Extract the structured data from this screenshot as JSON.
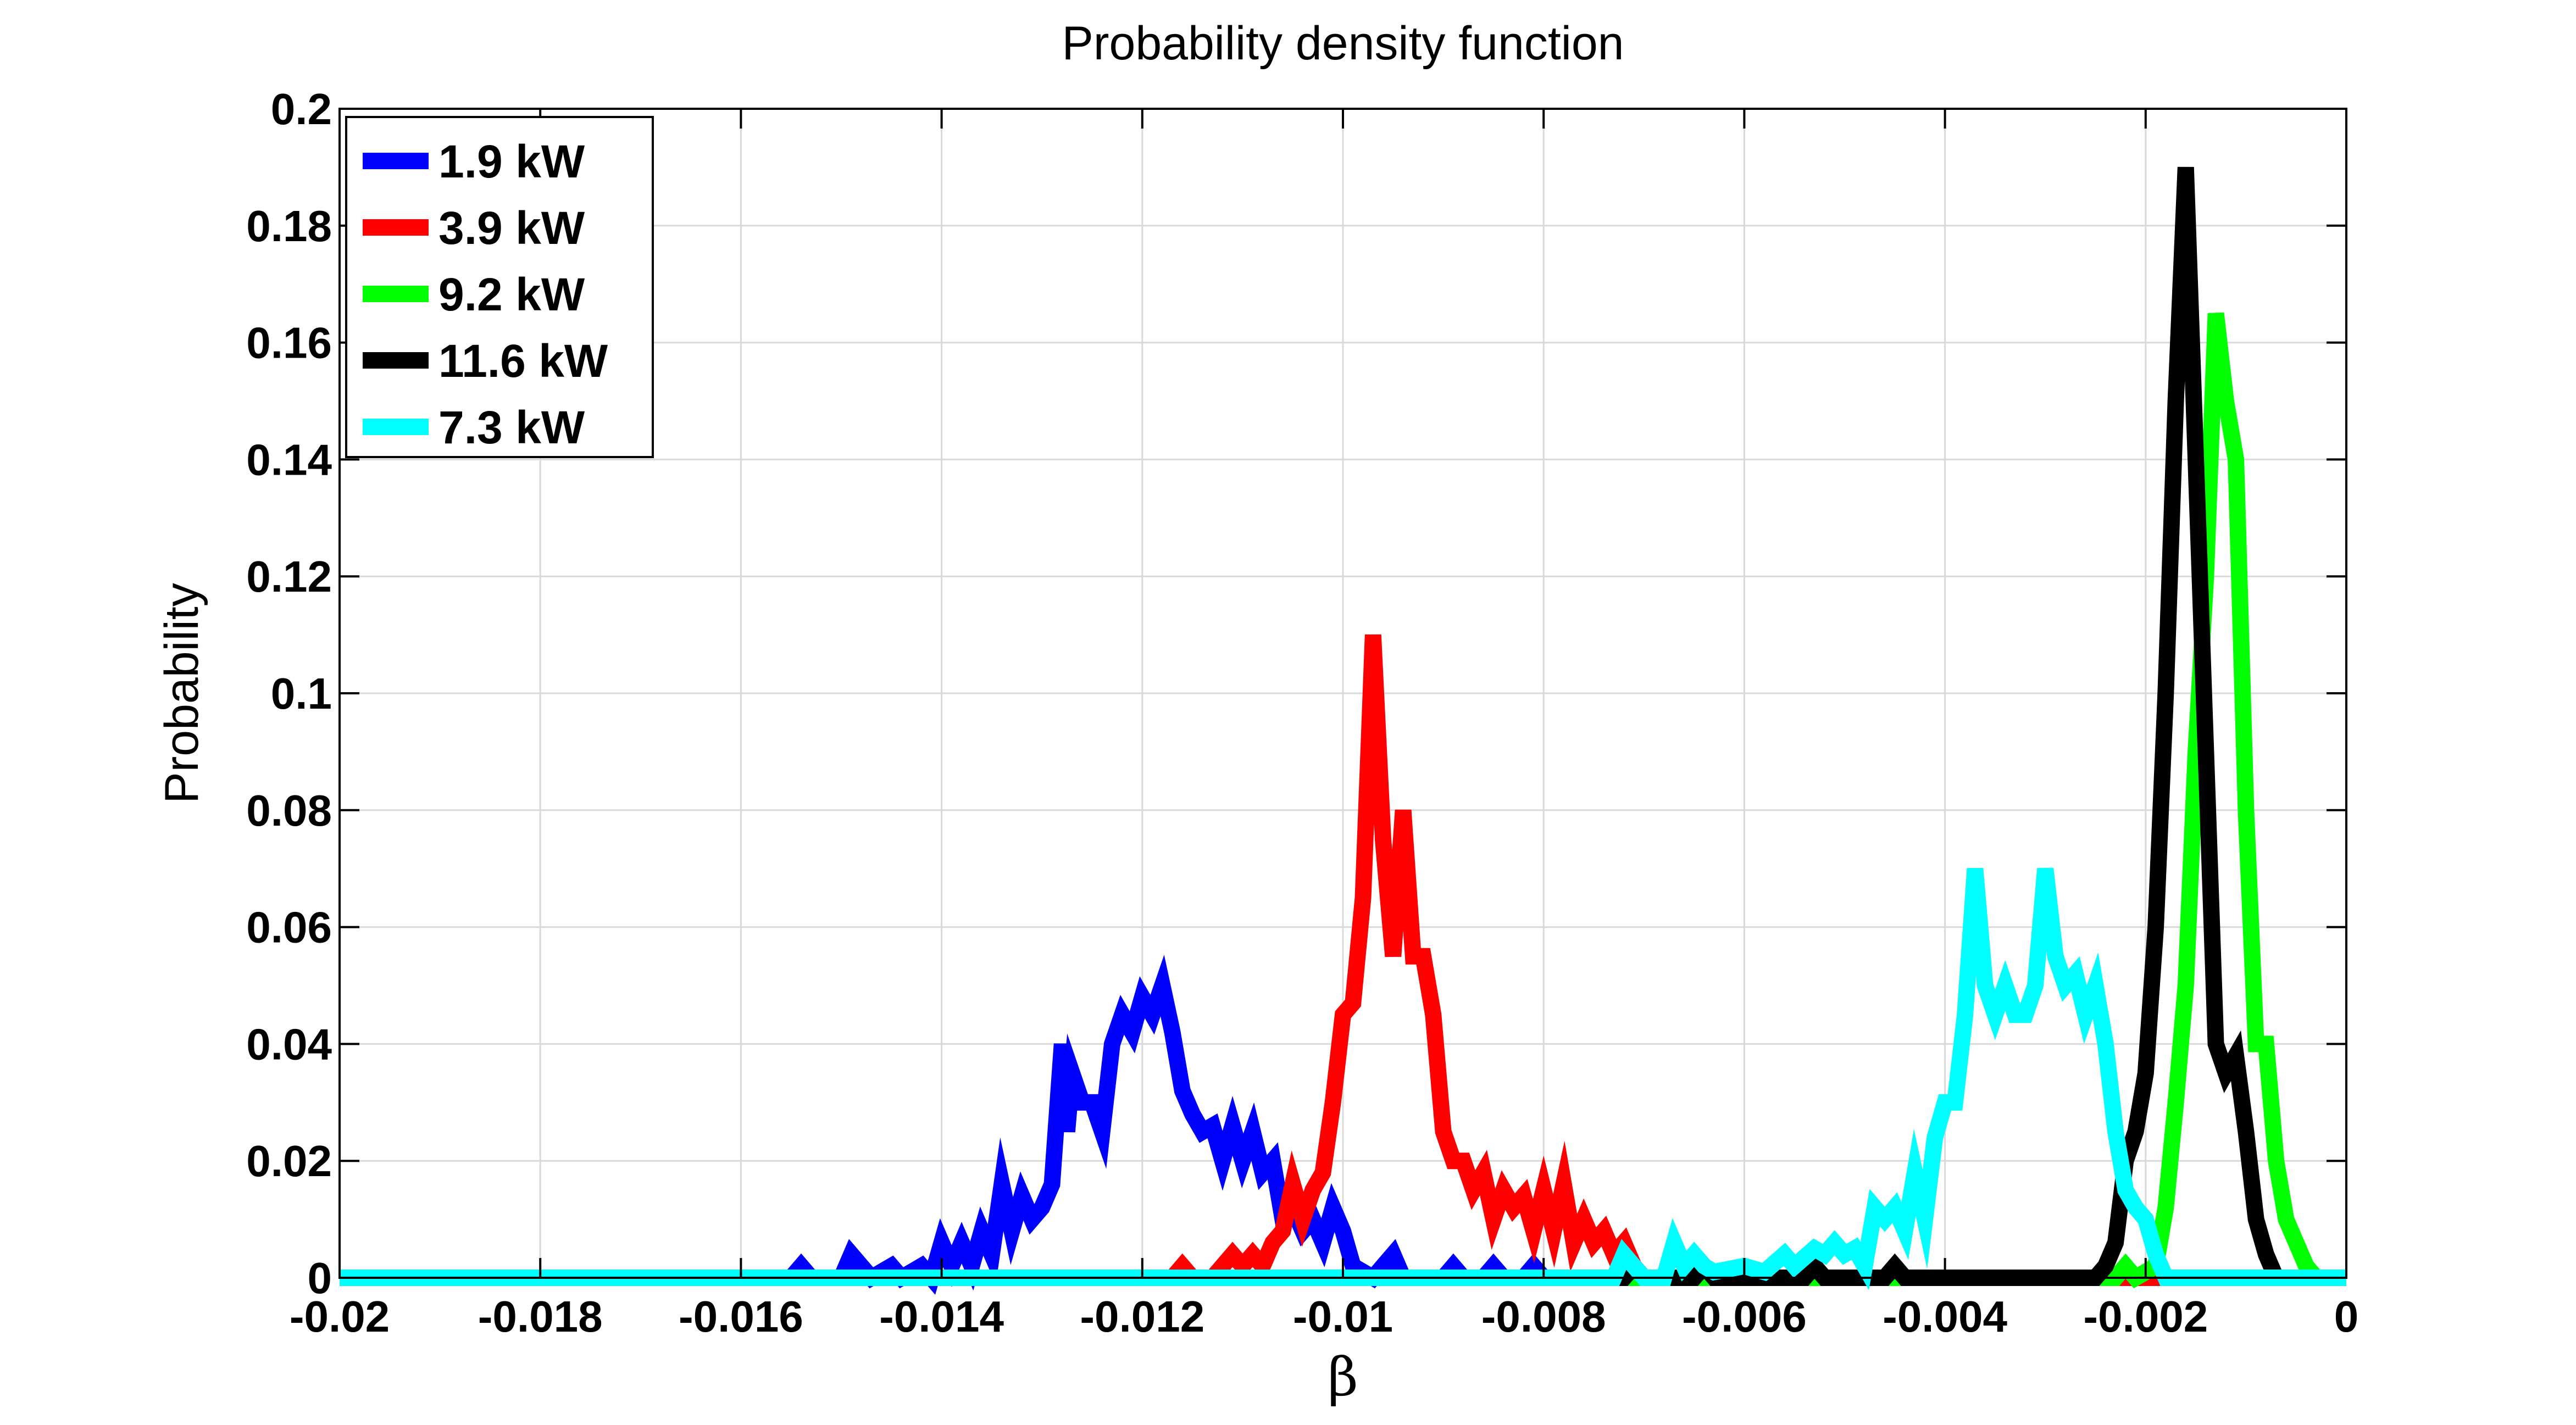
{
  "chart_data": {
    "type": "line",
    "title": "Probability density function",
    "xlabel": "β",
    "ylabel": "Probability",
    "xlim": [
      -0.02,
      0
    ],
    "ylim": [
      0,
      0.2
    ],
    "xticks": [
      -0.02,
      -0.018,
      -0.016,
      -0.014,
      -0.012,
      -0.01,
      -0.008,
      -0.006,
      -0.004,
      -0.002,
      0
    ],
    "xtick_labels": [
      "-0.02",
      "-0.018",
      "-0.016",
      "-0.014",
      "-0.012",
      "-0.01",
      "-0.008",
      "-0.006",
      "-0.004",
      "-0.002",
      "0"
    ],
    "yticks": [
      0,
      0.02,
      0.04,
      0.06,
      0.08,
      0.1,
      0.12,
      0.14,
      0.16,
      0.18,
      0.2
    ],
    "ytick_labels": [
      "0",
      "0.02",
      "0.04",
      "0.06",
      "0.08",
      "0.1",
      "0.12",
      "0.14",
      "0.16",
      "0.18",
      "0.2"
    ],
    "grid": true,
    "legend_position": "top-left",
    "series": [
      {
        "name": "1.9 kW",
        "color": "#0000ff",
        "points": [
          [
            -0.02,
            0
          ],
          [
            -0.0155,
            0
          ],
          [
            -0.0154,
            0.002
          ],
          [
            -0.0153,
            0
          ],
          [
            -0.015,
            0
          ],
          [
            -0.0149,
            0.004
          ],
          [
            -0.0148,
            0.002
          ],
          [
            -0.0147,
            0
          ],
          [
            -0.0145,
            0.002
          ],
          [
            -0.0144,
            0
          ],
          [
            -0.0142,
            0.002
          ],
          [
            -0.0141,
            0
          ],
          [
            -0.014,
            0.006
          ],
          [
            -0.0139,
            0.002
          ],
          [
            -0.0138,
            0.006
          ],
          [
            -0.0137,
            0.002
          ],
          [
            -0.0136,
            0.008
          ],
          [
            -0.0135,
            0.004
          ],
          [
            -0.0134,
            0.016
          ],
          [
            -0.0133,
            0.008
          ],
          [
            -0.0132,
            0.014
          ],
          [
            -0.0131,
            0.01
          ],
          [
            -0.013,
            0.012
          ],
          [
            -0.0129,
            0.016
          ],
          [
            -0.0128,
            0.04
          ],
          [
            -0.01275,
            0.025
          ],
          [
            -0.0127,
            0.035
          ],
          [
            -0.0126,
            0.03
          ],
          [
            -0.0125,
            0.03
          ],
          [
            -0.0124,
            0.025
          ],
          [
            -0.0123,
            0.04
          ],
          [
            -0.0122,
            0.045
          ],
          [
            -0.0121,
            0.042
          ],
          [
            -0.012,
            0.048
          ],
          [
            -0.0119,
            0.045
          ],
          [
            -0.0118,
            0.05
          ],
          [
            -0.0117,
            0.042
          ],
          [
            -0.0116,
            0.032
          ],
          [
            -0.0115,
            0.028
          ],
          [
            -0.0114,
            0.025
          ],
          [
            -0.0113,
            0.026
          ],
          [
            -0.0112,
            0.02
          ],
          [
            -0.0111,
            0.026
          ],
          [
            -0.011,
            0.02
          ],
          [
            -0.0109,
            0.025
          ],
          [
            -0.0108,
            0.018
          ],
          [
            -0.0107,
            0.02
          ],
          [
            -0.0106,
            0.01
          ],
          [
            -0.0105,
            0.012
          ],
          [
            -0.0104,
            0.008
          ],
          [
            -0.0103,
            0.01
          ],
          [
            -0.0102,
            0.006
          ],
          [
            -0.0101,
            0.012
          ],
          [
            -0.01,
            0.008
          ],
          [
            -0.0099,
            0.002
          ],
          [
            -0.0097,
            0
          ],
          [
            -0.0095,
            0.004
          ],
          [
            -0.0094,
            0
          ],
          [
            -0.009,
            0
          ],
          [
            -0.0089,
            0.002
          ],
          [
            -0.0088,
            0
          ],
          [
            -0.0086,
            0
          ],
          [
            -0.0085,
            0.002
          ],
          [
            -0.0084,
            0
          ],
          [
            -0.0082,
            0
          ],
          [
            -0.0081,
            0.002
          ],
          [
            -0.008,
            0
          ],
          [
            0,
            0
          ]
        ]
      },
      {
        "name": "3.9 kW",
        "color": "#ff0000",
        "points": [
          [
            -0.02,
            0
          ],
          [
            -0.0117,
            0
          ],
          [
            -0.0116,
            0.002
          ],
          [
            -0.0115,
            0
          ],
          [
            -0.0113,
            0
          ],
          [
            -0.0112,
            0.002
          ],
          [
            -0.0111,
            0.004
          ],
          [
            -0.011,
            0.002
          ],
          [
            -0.0109,
            0.004
          ],
          [
            -0.0108,
            0.002
          ],
          [
            -0.0107,
            0.006
          ],
          [
            -0.0106,
            0.008
          ],
          [
            -0.0105,
            0.016
          ],
          [
            -0.0104,
            0.01
          ],
          [
            -0.0103,
            0.015
          ],
          [
            -0.0102,
            0.018
          ],
          [
            -0.0101,
            0.03
          ],
          [
            -0.01,
            0.045
          ],
          [
            -0.0099,
            0.047
          ],
          [
            -0.0098,
            0.065
          ],
          [
            -0.0097,
            0.11
          ],
          [
            -0.0096,
            0.075
          ],
          [
            -0.0095,
            0.055
          ],
          [
            -0.0094,
            0.08
          ],
          [
            -0.0093,
            0.055
          ],
          [
            -0.0092,
            0.055
          ],
          [
            -0.0091,
            0.045
          ],
          [
            -0.009,
            0.025
          ],
          [
            -0.0089,
            0.02
          ],
          [
            -0.0088,
            0.02
          ],
          [
            -0.0087,
            0.015
          ],
          [
            -0.0086,
            0.018
          ],
          [
            -0.0085,
            0.01
          ],
          [
            -0.0084,
            0.015
          ],
          [
            -0.0083,
            0.012
          ],
          [
            -0.0082,
            0.014
          ],
          [
            -0.0081,
            0.008
          ],
          [
            -0.008,
            0.015
          ],
          [
            -0.0079,
            0.008
          ],
          [
            -0.0078,
            0.016
          ],
          [
            -0.0077,
            0.006
          ],
          [
            -0.0076,
            0.01
          ],
          [
            -0.0075,
            0.006
          ],
          [
            -0.0074,
            0.008
          ],
          [
            -0.0073,
            0.004
          ],
          [
            -0.0072,
            0.006
          ],
          [
            -0.0071,
            0.002
          ],
          [
            -0.007,
            0
          ],
          [
            0,
            0
          ]
        ]
      },
      {
        "name": "9.2 kW",
        "color": "#00ff00",
        "points": [
          [
            -0.02,
            0
          ],
          [
            -0.0023,
            0
          ],
          [
            -0.0022,
            0.002
          ],
          [
            -0.0021,
            0
          ],
          [
            -0.0019,
            0.002
          ],
          [
            -0.0018,
            0.012
          ],
          [
            -0.0017,
            0.03
          ],
          [
            -0.0016,
            0.05
          ],
          [
            -0.0015,
            0.09
          ],
          [
            -0.0014,
            0.12
          ],
          [
            -0.0013,
            0.165
          ],
          [
            -0.0012,
            0.15
          ],
          [
            -0.0011,
            0.14
          ],
          [
            -0.001,
            0.08
          ],
          [
            -0.0009,
            0.04
          ],
          [
            -0.0008,
            0.04
          ],
          [
            -0.0007,
            0.02
          ],
          [
            -0.0006,
            0.01
          ],
          [
            -0.0005,
            0.006
          ],
          [
            -0.0004,
            0.002
          ],
          [
            -0.0003,
            0
          ],
          [
            0,
            0
          ]
        ]
      },
      {
        "name": "11.6 kW",
        "color": "#000000",
        "points": [
          [
            -0.02,
            0
          ],
          [
            -0.0072,
            0
          ],
          [
            -0.0071,
            0.002
          ],
          [
            -0.007,
            0
          ],
          [
            -0.0065,
            0
          ],
          [
            -0.0064,
            0.002
          ],
          [
            -0.0063,
            0
          ],
          [
            -0.0054,
            0
          ],
          [
            -0.0053,
            0.002
          ],
          [
            -0.0052,
            0
          ],
          [
            -0.0046,
            0
          ],
          [
            -0.0045,
            0.002
          ],
          [
            -0.0044,
            0
          ],
          [
            -0.0025,
            0
          ],
          [
            -0.0024,
            0.002
          ],
          [
            -0.0023,
            0.006
          ],
          [
            -0.0022,
            0.02
          ],
          [
            -0.0021,
            0.025
          ],
          [
            -0.002,
            0.035
          ],
          [
            -0.0019,
            0.06
          ],
          [
            -0.0018,
            0.1
          ],
          [
            -0.0017,
            0.15
          ],
          [
            -0.0016,
            0.19
          ],
          [
            -0.0015,
            0.14
          ],
          [
            -0.0014,
            0.09
          ],
          [
            -0.0013,
            0.04
          ],
          [
            -0.0012,
            0.035
          ],
          [
            -0.0011,
            0.038
          ],
          [
            -0.001,
            0.025
          ],
          [
            -0.0009,
            0.01
          ],
          [
            -0.0008,
            0.004
          ],
          [
            -0.0007,
            0
          ],
          [
            0,
            0
          ]
        ]
      },
      {
        "name": "7.3 kW",
        "color": "#00ffff",
        "points": [
          [
            -0.02,
            0
          ],
          [
            -0.0073,
            0
          ],
          [
            -0.0072,
            0.004
          ],
          [
            -0.0071,
            0.002
          ],
          [
            -0.007,
            0
          ],
          [
            -0.0068,
            0
          ],
          [
            -0.0067,
            0.006
          ],
          [
            -0.0066,
            0.002
          ],
          [
            -0.0065,
            0.004
          ],
          [
            -0.0064,
            0.002
          ],
          [
            -0.0063,
            0.001
          ],
          [
            -0.006,
            0.002
          ],
          [
            -0.0058,
            0.001
          ],
          [
            -0.0056,
            0.004
          ],
          [
            -0.0055,
            0.002
          ],
          [
            -0.0053,
            0.005
          ],
          [
            -0.0052,
            0.004
          ],
          [
            -0.0051,
            0.006
          ],
          [
            -0.005,
            0.004
          ],
          [
            -0.0049,
            0.005
          ],
          [
            -0.0048,
            0.002
          ],
          [
            -0.0047,
            0.012
          ],
          [
            -0.0046,
            0.01
          ],
          [
            -0.0045,
            0.012
          ],
          [
            -0.0044,
            0.008
          ],
          [
            -0.0043,
            0.018
          ],
          [
            -0.0042,
            0.01
          ],
          [
            -0.0041,
            0.024
          ],
          [
            -0.004,
            0.03
          ],
          [
            -0.0039,
            0.03
          ],
          [
            -0.0038,
            0.045
          ],
          [
            -0.0037,
            0.07
          ],
          [
            -0.0036,
            0.05
          ],
          [
            -0.0035,
            0.045
          ],
          [
            -0.0034,
            0.05
          ],
          [
            -0.0033,
            0.045
          ],
          [
            -0.0032,
            0.045
          ],
          [
            -0.0031,
            0.05
          ],
          [
            -0.003,
            0.07
          ],
          [
            -0.0029,
            0.055
          ],
          [
            -0.0028,
            0.05
          ],
          [
            -0.0027,
            0.052
          ],
          [
            -0.0026,
            0.045
          ],
          [
            -0.0025,
            0.05
          ],
          [
            -0.0024,
            0.04
          ],
          [
            -0.0023,
            0.025
          ],
          [
            -0.0022,
            0.015
          ],
          [
            -0.0021,
            0.012
          ],
          [
            -0.002,
            0.01
          ],
          [
            -0.0019,
            0.004
          ],
          [
            -0.0018,
            0
          ],
          [
            0,
            0
          ]
        ]
      }
    ]
  }
}
